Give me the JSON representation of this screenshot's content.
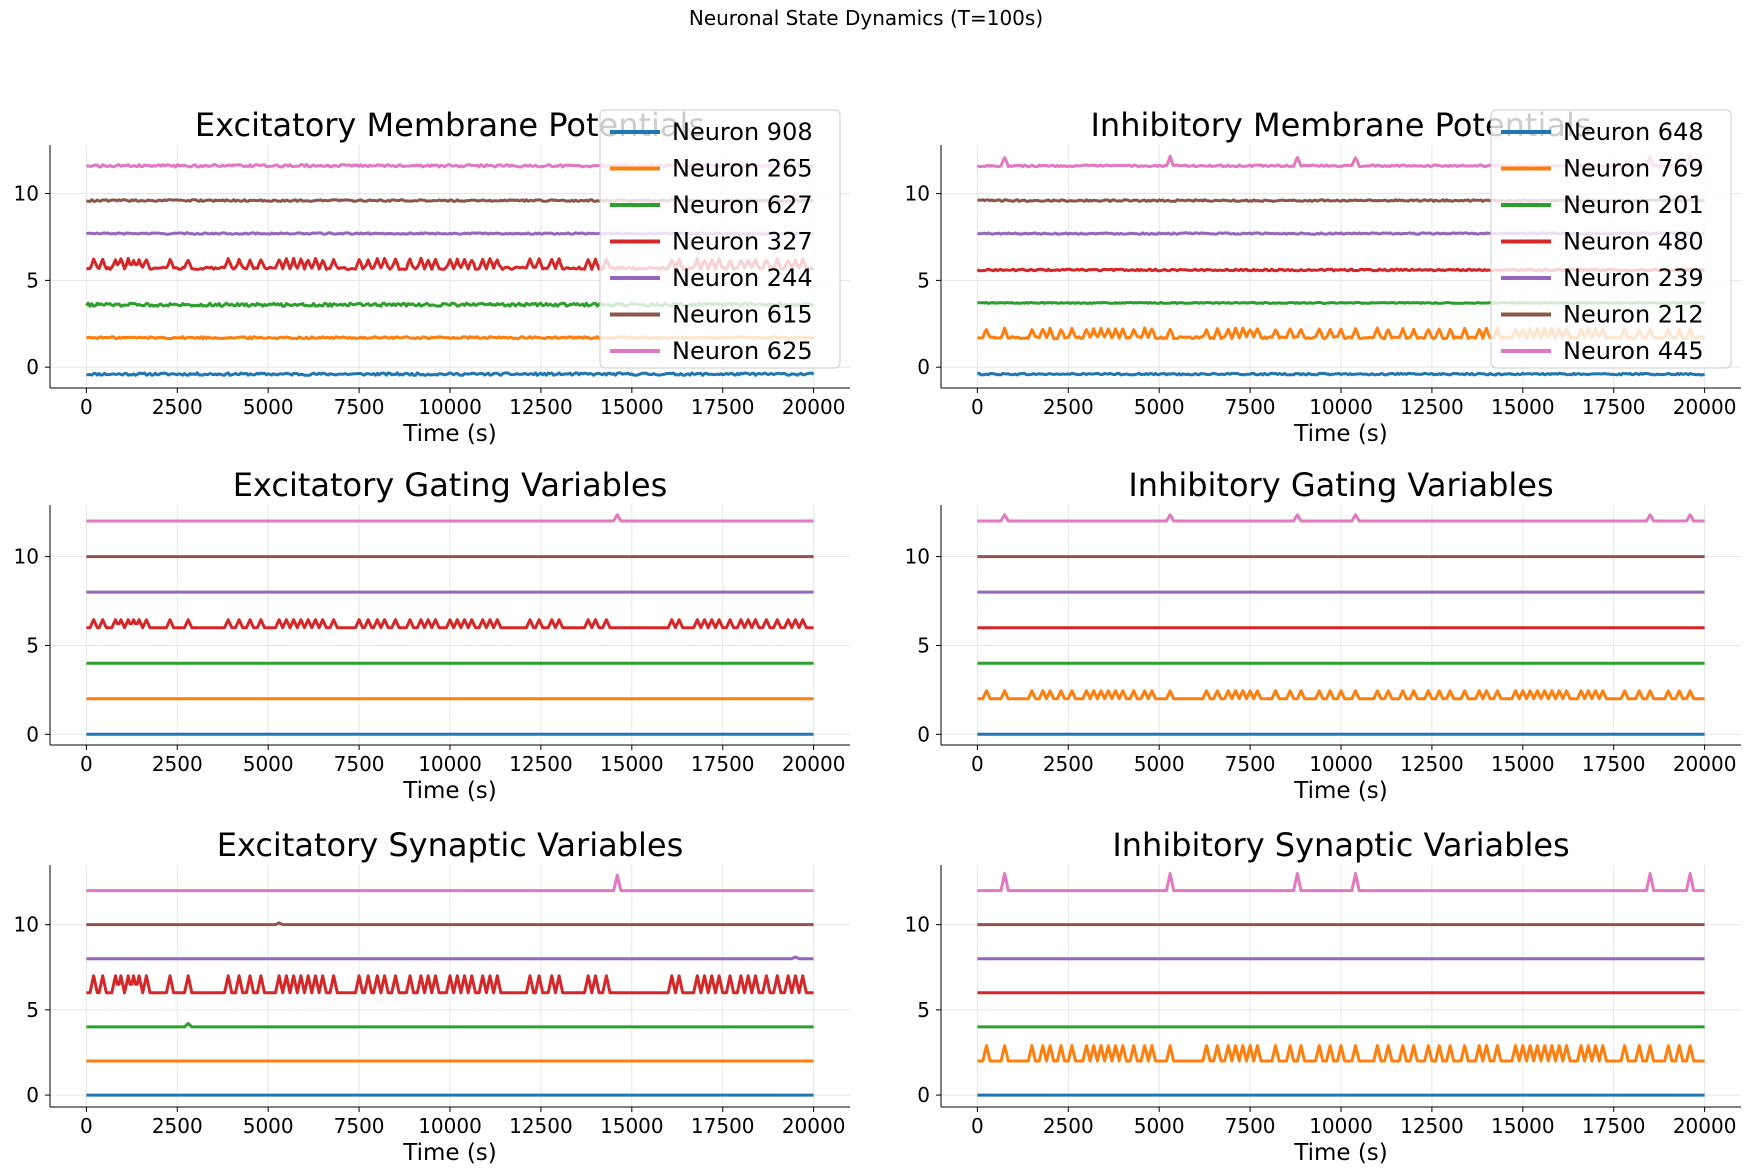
{
  "suptitle": "Neuronal State Dynamics (T=100s)",
  "colors": [
    "#1f77b4",
    "#ff7f0e",
    "#2ca02c",
    "#d62728",
    "#9467bd",
    "#8c564b",
    "#e377c2"
  ],
  "chart_data": [
    {
      "type": "line",
      "title": "Excitatory Membrane Potentials",
      "xlabel": "Time (s)",
      "xlim": [
        -1000,
        21000
      ],
      "ylim": [
        -1.2,
        12.8
      ],
      "xticks": [
        0,
        2500,
        5000,
        7500,
        10000,
        12500,
        15000,
        17500,
        20000
      ],
      "yticks": [
        0,
        5,
        10
      ],
      "grid": true,
      "legend": "top-right",
      "series": [
        {
          "name": "Neuron 908",
          "offset": -0.4,
          "noise": 0.14,
          "spike_height": 0,
          "spike_times": []
        },
        {
          "name": "Neuron 265",
          "offset": 1.7,
          "noise": 0.12,
          "spike_height": 0,
          "spike_times": []
        },
        {
          "name": "Neuron 627",
          "offset": 3.6,
          "noise": 0.18,
          "spike_height": 0,
          "spike_times": []
        },
        {
          "name": "Neuron 327",
          "offset": 5.7,
          "noise": 0.14,
          "spike_height": 0.5,
          "spike_times": [
            200,
            450,
            800,
            950,
            1150,
            1300,
            1450,
            1650,
            2300,
            2800,
            3900,
            4200,
            4500,
            4800,
            5300,
            5500,
            5700,
            5900,
            6100,
            6300,
            6500,
            6800,
            7500,
            7750,
            8000,
            8200,
            8500,
            8900,
            9200,
            9400,
            9600,
            10000,
            10200,
            10400,
            10600,
            10900,
            11100,
            11300,
            12200,
            12450,
            12800,
            13000,
            13800,
            14000,
            14300,
            16100,
            16300,
            16800,
            17000,
            17200,
            17400,
            17700,
            18000,
            18200,
            18400,
            18700,
            19000,
            19300,
            19500,
            19700
          ]
        },
        {
          "name": "Neuron 244",
          "offset": 7.7,
          "noise": 0.08,
          "spike_height": 0,
          "spike_times": []
        },
        {
          "name": "Neuron 615",
          "offset": 9.6,
          "noise": 0.1,
          "spike_height": 0,
          "spike_times": []
        },
        {
          "name": "Neuron 625",
          "offset": 11.6,
          "noise": 0.14,
          "spike_height": 0,
          "spike_times": []
        }
      ]
    },
    {
      "type": "line",
      "title": "Inhibitory Membrane Potentials",
      "xlabel": "Time (s)",
      "xlim": [
        -1000,
        21000
      ],
      "ylim": [
        -1.2,
        12.8
      ],
      "xticks": [
        0,
        2500,
        5000,
        7500,
        10000,
        12500,
        15000,
        17500,
        20000
      ],
      "yticks": [
        0,
        5,
        10
      ],
      "grid": true,
      "legend": "top-right",
      "series": [
        {
          "name": "Neuron 648",
          "offset": -0.4,
          "noise": 0.1,
          "spike_height": 0,
          "spike_times": []
        },
        {
          "name": "Neuron 769",
          "offset": 1.7,
          "noise": 0.12,
          "spike_height": 0.5,
          "spike_times": [
            250,
            750,
            1500,
            1800,
            2000,
            2300,
            2600,
            3000,
            3200,
            3400,
            3600,
            3800,
            4000,
            4300,
            4600,
            4800,
            5300,
            6300,
            6600,
            6900,
            7100,
            7300,
            7500,
            7700,
            8200,
            8600,
            8900,
            9400,
            9700,
            10000,
            10400,
            11000,
            11300,
            11700,
            12000,
            12400,
            12700,
            13000,
            13400,
            13800,
            14000,
            14300,
            14800,
            15000,
            15200,
            15400,
            15600,
            15800,
            16000,
            16200,
            16600,
            16800,
            17000,
            17200,
            17800,
            18200,
            18500,
            19000,
            19300,
            19600
          ]
        },
        {
          "name": "Neuron 201",
          "offset": 3.7,
          "noise": 0.06,
          "spike_height": 0,
          "spike_times": []
        },
        {
          "name": "Neuron 480",
          "offset": 5.6,
          "noise": 0.1,
          "spike_height": 0,
          "spike_times": []
        },
        {
          "name": "Neuron 239",
          "offset": 7.7,
          "noise": 0.08,
          "spike_height": 0,
          "spike_times": []
        },
        {
          "name": "Neuron 212",
          "offset": 9.6,
          "noise": 0.1,
          "spike_height": 0,
          "spike_times": []
        },
        {
          "name": "Neuron 445",
          "offset": 11.6,
          "noise": 0.1,
          "spike_height": 0.5,
          "spike_times": [
            750,
            5300,
            8800,
            10400,
            18500,
            19600
          ]
        }
      ]
    },
    {
      "type": "line",
      "title": "Excitatory Gating Variables",
      "xlabel": "Time (s)",
      "xlim": [
        -1000,
        21000
      ],
      "ylim": [
        -0.6,
        12.9
      ],
      "xticks": [
        0,
        2500,
        5000,
        7500,
        10000,
        12500,
        15000,
        17500,
        20000
      ],
      "yticks": [
        0,
        5,
        10
      ],
      "grid": true,
      "series": [
        {
          "offset": 0,
          "noise": 0,
          "spike_height": 0,
          "spike_times": []
        },
        {
          "offset": 2,
          "noise": 0,
          "spike_height": 0,
          "spike_times": []
        },
        {
          "offset": 4,
          "noise": 0,
          "spike_height": 0,
          "spike_times": []
        },
        {
          "offset": 6,
          "noise": 0,
          "spike_height": 0.45,
          "spike_times": [
            200,
            450,
            800,
            950,
            1150,
            1300,
            1450,
            1650,
            2300,
            2800,
            3900,
            4200,
            4500,
            4800,
            5300,
            5500,
            5700,
            5900,
            6100,
            6300,
            6500,
            6800,
            7500,
            7750,
            8000,
            8200,
            8500,
            8900,
            9200,
            9400,
            9600,
            10000,
            10200,
            10400,
            10600,
            10900,
            11100,
            11300,
            12200,
            12450,
            12800,
            13000,
            13800,
            14000,
            14300,
            16100,
            16300,
            16800,
            17000,
            17200,
            17400,
            17700,
            18000,
            18200,
            18400,
            18700,
            19000,
            19300,
            19500,
            19700
          ]
        },
        {
          "offset": 8,
          "noise": 0,
          "spike_height": 0,
          "spike_times": []
        },
        {
          "offset": 10,
          "noise": 0,
          "spike_height": 0,
          "spike_times": []
        },
        {
          "offset": 12,
          "noise": 0,
          "spike_height": 0.35,
          "spike_times": [
            14600
          ]
        }
      ]
    },
    {
      "type": "line",
      "title": "Inhibitory Gating Variables",
      "xlabel": "Time (s)",
      "xlim": [
        -1000,
        21000
      ],
      "ylim": [
        -0.6,
        12.9
      ],
      "xticks": [
        0,
        2500,
        5000,
        7500,
        10000,
        12500,
        15000,
        17500,
        20000
      ],
      "yticks": [
        0,
        5,
        10
      ],
      "grid": true,
      "series": [
        {
          "offset": 0,
          "noise": 0,
          "spike_height": 0,
          "spike_times": []
        },
        {
          "offset": 2,
          "noise": 0,
          "spike_height": 0.45,
          "spike_times": [
            250,
            750,
            1500,
            1800,
            2000,
            2300,
            2600,
            3000,
            3200,
            3400,
            3600,
            3800,
            4000,
            4300,
            4600,
            4800,
            5300,
            6300,
            6600,
            6900,
            7100,
            7300,
            7500,
            7700,
            8200,
            8600,
            8900,
            9400,
            9700,
            10000,
            10400,
            11000,
            11300,
            11700,
            12000,
            12400,
            12700,
            13000,
            13400,
            13800,
            14000,
            14300,
            14800,
            15000,
            15200,
            15400,
            15600,
            15800,
            16000,
            16200,
            16600,
            16800,
            17000,
            17200,
            17800,
            18200,
            18500,
            19000,
            19300,
            19600
          ]
        },
        {
          "offset": 4,
          "noise": 0,
          "spike_height": 0,
          "spike_times": []
        },
        {
          "offset": 6,
          "noise": 0,
          "spike_height": 0,
          "spike_times": []
        },
        {
          "offset": 8,
          "noise": 0,
          "spike_height": 0,
          "spike_times": []
        },
        {
          "offset": 10,
          "noise": 0,
          "spike_height": 0,
          "spike_times": []
        },
        {
          "offset": 12,
          "noise": 0,
          "spike_height": 0.35,
          "spike_times": [
            750,
            5300,
            8800,
            10400,
            18500,
            19600
          ]
        }
      ]
    },
    {
      "type": "line",
      "title": "Excitatory Synaptic Variables",
      "xlabel": "Time (s)",
      "xlim": [
        -1000,
        21000
      ],
      "ylim": [
        -0.7,
        13.5
      ],
      "xticks": [
        0,
        2500,
        5000,
        7500,
        10000,
        12500,
        15000,
        17500,
        20000
      ],
      "yticks": [
        0,
        5,
        10
      ],
      "grid": true,
      "series": [
        {
          "offset": 0,
          "noise": 0,
          "spike_height": 0,
          "spike_times": []
        },
        {
          "offset": 2,
          "noise": 0,
          "spike_height": 0,
          "spike_times": []
        },
        {
          "offset": 4,
          "noise": 0,
          "spike_height": 0.2,
          "spike_times": [
            2800
          ]
        },
        {
          "offset": 6,
          "noise": 0,
          "spike_height": 1.0,
          "spike_times": [
            200,
            450,
            800,
            950,
            1150,
            1300,
            1450,
            1650,
            2300,
            2800,
            3900,
            4200,
            4500,
            4800,
            5300,
            5500,
            5700,
            5900,
            6100,
            6300,
            6500,
            6800,
            7500,
            7750,
            8000,
            8200,
            8500,
            8900,
            9200,
            9400,
            9600,
            10000,
            10200,
            10400,
            10600,
            10900,
            11100,
            11300,
            12200,
            12450,
            12800,
            13000,
            13800,
            14000,
            14300,
            16100,
            16300,
            16800,
            17000,
            17200,
            17400,
            17700,
            18000,
            18200,
            18400,
            18700,
            19000,
            19300,
            19500,
            19700
          ]
        },
        {
          "offset": 8,
          "noise": 0,
          "spike_height": 0.1,
          "spike_times": [
            19500
          ]
        },
        {
          "offset": 10,
          "noise": 0,
          "spike_height": 0.1,
          "spike_times": [
            5300
          ]
        },
        {
          "offset": 12,
          "noise": 0,
          "spike_height": 0.9,
          "spike_times": [
            14600
          ]
        }
      ]
    },
    {
      "type": "line",
      "title": "Inhibitory Synaptic Variables",
      "xlabel": "Time (s)",
      "xlim": [
        -1000,
        21000
      ],
      "ylim": [
        -0.7,
        13.5
      ],
      "xticks": [
        0,
        2500,
        5000,
        7500,
        10000,
        12500,
        15000,
        17500,
        20000
      ],
      "yticks": [
        0,
        5,
        10
      ],
      "grid": true,
      "series": [
        {
          "offset": 0,
          "noise": 0,
          "spike_height": 0,
          "spike_times": []
        },
        {
          "offset": 2,
          "noise": 0,
          "spike_height": 0.9,
          "spike_times": [
            250,
            750,
            1500,
            1800,
            2000,
            2300,
            2600,
            3000,
            3200,
            3400,
            3600,
            3800,
            4000,
            4300,
            4600,
            4800,
            5300,
            6300,
            6600,
            6900,
            7100,
            7300,
            7500,
            7700,
            8200,
            8600,
            8900,
            9400,
            9700,
            10000,
            10400,
            11000,
            11300,
            11700,
            12000,
            12400,
            12700,
            13000,
            13400,
            13800,
            14000,
            14300,
            14800,
            15000,
            15200,
            15400,
            15600,
            15800,
            16000,
            16200,
            16600,
            16800,
            17000,
            17200,
            17800,
            18200,
            18500,
            19000,
            19300,
            19600
          ]
        },
        {
          "offset": 4,
          "noise": 0,
          "spike_height": 0,
          "spike_times": []
        },
        {
          "offset": 6,
          "noise": 0,
          "spike_height": 0,
          "spike_times": []
        },
        {
          "offset": 8,
          "noise": 0,
          "spike_height": 0,
          "spike_times": []
        },
        {
          "offset": 10,
          "noise": 0,
          "spike_height": 0,
          "spike_times": []
        },
        {
          "offset": 12,
          "noise": 0,
          "spike_height": 1.0,
          "spike_times": [
            750,
            5300,
            8800,
            10400,
            18500,
            19600
          ]
        }
      ]
    }
  ]
}
